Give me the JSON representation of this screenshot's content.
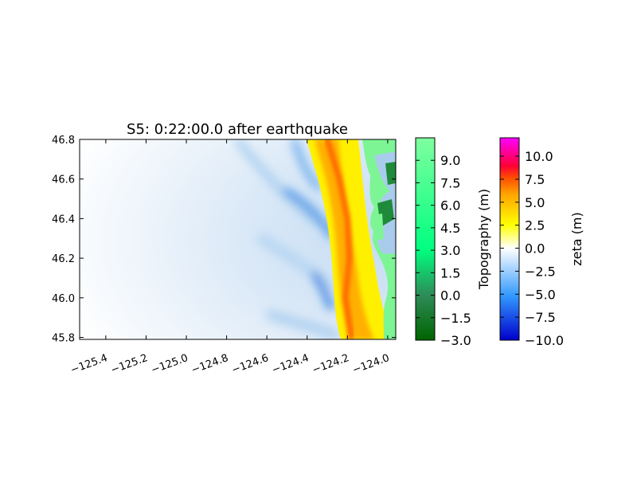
{
  "chart_data": {
    "type": "heatmap",
    "title": "S5: 0:22:00.0 after earthquake",
    "xlabel": "",
    "ylabel": "",
    "xlim": [
      -125.53,
      -123.96
    ],
    "ylim": [
      45.79,
      46.8
    ],
    "xticks": [
      -125.4,
      -125.2,
      -125.0,
      -124.8,
      -124.6,
      -124.4,
      -124.2,
      -124.0
    ],
    "xtick_labels": [
      "−125.4",
      "−125.2",
      "−125.0",
      "−124.8",
      "−124.6",
      "−124.4",
      "−124.2",
      "−124.0"
    ],
    "yticks": [
      45.8,
      46.0,
      46.2,
      46.4,
      46.6,
      46.8
    ],
    "ytick_labels": [
      "45.8",
      "46.0",
      "46.2",
      "46.4",
      "46.6",
      "46.8"
    ],
    "wave_crest": [
      {
        "lat": 46.8,
        "lon": -124.3
      },
      {
        "lat": 46.6,
        "lon": -124.24
      },
      {
        "lat": 46.4,
        "lon": -124.2
      },
      {
        "lat": 46.2,
        "lon": -124.19
      },
      {
        "lat": 46.0,
        "lon": -124.21
      },
      {
        "lat": 45.8,
        "lon": -124.18
      }
    ],
    "colorbars": [
      {
        "label": "Topography (m)",
        "range": [
          -3.0,
          10.5
        ],
        "ticks": [
          -3.0,
          -1.5,
          0.0,
          1.5,
          3.0,
          4.5,
          6.0,
          7.5,
          9.0
        ],
        "tick_labels": [
          "−3.0",
          "−1.5",
          "0.0",
          "1.5",
          "3.0",
          "4.5",
          "6.0",
          "7.5",
          "9.0"
        ],
        "colors": [
          "#006400",
          "#3cb371",
          "#00ff80",
          "#7fff9f"
        ]
      },
      {
        "label": "zeta (m)",
        "range": [
          -10.0,
          12.0
        ],
        "ticks": [
          -10.0,
          -7.5,
          -5.0,
          -2.5,
          0.0,
          2.5,
          5.0,
          7.5,
          10.0
        ],
        "tick_labels": [
          "−10.0",
          "−7.5",
          "−5.0",
          "−2.5",
          "0.0",
          "2.5",
          "5.0",
          "7.5",
          "10.0"
        ],
        "colors": [
          "#0000cc",
          "#3399ff",
          "#ffffff",
          "#ffff00",
          "#ff8000",
          "#ff0000",
          "#ff00ff"
        ]
      }
    ]
  }
}
